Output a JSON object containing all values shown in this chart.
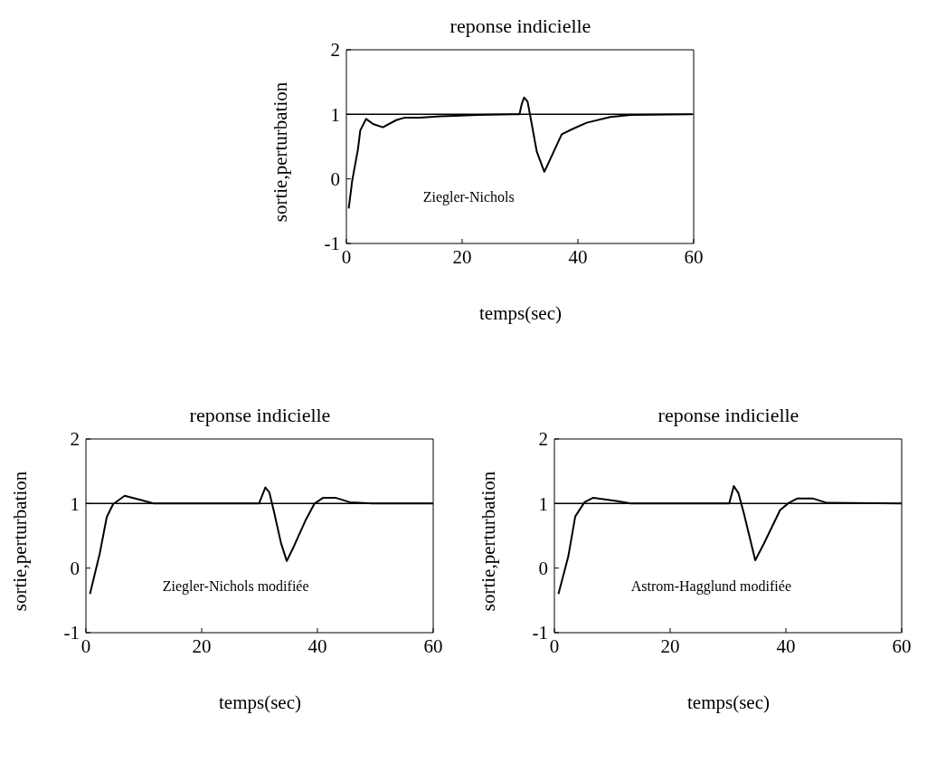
{
  "chart_data": [
    {
      "type": "line",
      "title": "reponse indicielle",
      "xlabel": "temps(sec)",
      "ylabel": "sortie,perturbation",
      "annotations": [
        "Ziegler-Nichols"
      ],
      "xlim": [
        0,
        60
      ],
      "ylim": [
        -1,
        2
      ],
      "xticks": [
        0,
        20,
        40,
        60
      ],
      "yticks": [
        -1,
        0,
        1,
        2
      ],
      "ref_lines": [
        {
          "axis": "y",
          "value": 1,
          "color": "#000000"
        }
      ],
      "series": [
        {
          "color": "#000000",
          "x": [
            0.4,
            1.0,
            2.0,
            2.4,
            3.4,
            4.6,
            6.3,
            8.6,
            10.1,
            12.7,
            16.2,
            22.8,
            28.9,
            29.9,
            30.3,
            30.7,
            31.3,
            31.9,
            32.9,
            34.2,
            35.4,
            37.2,
            39.0,
            41.5,
            45.6,
            49.1,
            59.7
          ],
          "values": [
            -0.46,
            -0.03,
            0.46,
            0.75,
            0.93,
            0.85,
            0.8,
            0.91,
            0.95,
            0.95,
            0.97,
            0.99,
            1.0,
            1.0,
            1.16,
            1.26,
            1.2,
            0.91,
            0.42,
            0.11,
            0.34,
            0.69,
            0.77,
            0.87,
            0.96,
            0.99,
            1.0
          ]
        }
      ]
    },
    {
      "type": "line",
      "title": "reponse indicielle",
      "xlabel": "temps(sec)",
      "ylabel": "sortie,perturbation",
      "annotations": [
        "Ziegler-Nichols modifiée"
      ],
      "xlim": [
        0,
        60
      ],
      "ylim": [
        -1,
        2
      ],
      "xticks": [
        0,
        20,
        40,
        60
      ],
      "yticks": [
        -1,
        0,
        1,
        2
      ],
      "ref_lines": [
        {
          "axis": "y",
          "value": 1,
          "color": "#000000"
        }
      ],
      "series": [
        {
          "color": "#000000",
          "x": [
            0.7,
            2.4,
            3.6,
            4.7,
            6.7,
            9.7,
            11.7,
            29.9,
            30.4,
            31.0,
            31.7,
            32.5,
            33.7,
            34.7,
            36.0,
            38.0,
            39.5,
            41.0,
            43.1,
            45.6,
            49.6,
            60
          ],
          "values": [
            -0.4,
            0.23,
            0.79,
            0.99,
            1.12,
            1.05,
            1.0,
            1.0,
            1.11,
            1.25,
            1.17,
            0.87,
            0.39,
            0.11,
            0.35,
            0.75,
            1.0,
            1.09,
            1.09,
            1.02,
            1.0,
            1.0
          ]
        }
      ]
    },
    {
      "type": "line",
      "title": "reponse indicielle",
      "xlabel": "temps(sec)",
      "ylabel": "sortie,perturbation",
      "annotations": [
        "Astrom-Hagglund modifiée"
      ],
      "xlim": [
        0,
        60
      ],
      "ylim": [
        -1,
        2
      ],
      "xticks": [
        0,
        20,
        40,
        60
      ],
      "yticks": [
        -1,
        0,
        1,
        2
      ],
      "ref_lines": [
        {
          "axis": "y",
          "value": 1,
          "color": "#000000"
        }
      ],
      "series": [
        {
          "color": "#000000",
          "x": [
            0.7,
            2.4,
            3.6,
            5.2,
            6.7,
            10.7,
            13.2,
            30.2,
            31.0,
            31.8,
            32.7,
            34.7,
            36.2,
            39.0,
            40.5,
            42.0,
            44.6,
            47.1,
            60
          ],
          "values": [
            -0.4,
            0.18,
            0.8,
            1.02,
            1.09,
            1.04,
            1.0,
            1.0,
            1.27,
            1.16,
            0.86,
            0.12,
            0.38,
            0.9,
            1.01,
            1.08,
            1.08,
            1.01,
            1.0
          ]
        }
      ]
    }
  ]
}
